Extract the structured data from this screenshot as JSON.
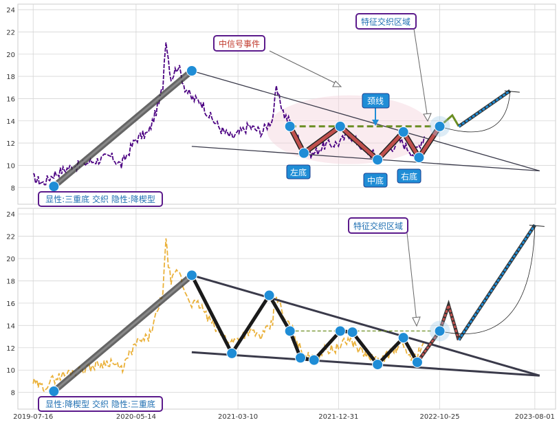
{
  "colors": {
    "panel_bg": "#eaeaf2",
    "grid": "#ffffff",
    "price_top": "#4b0082",
    "price_bottom": "#eab13a",
    "trend_thick": "#555555",
    "wave_red": "#c0504d",
    "wave_black": "#1a1a1a",
    "marker": "#1f8dd6",
    "neckline": "#6b8e23",
    "projection": "#1f8dd6",
    "annotation_border": "#5b1a8b",
    "annotation_text_red": "#c0392b",
    "annotation_text_blue": "#1f6fb2",
    "label_bg": "#1f8dd6"
  },
  "x_axis": {
    "tick_labels": [
      "2019-07-16",
      "2020-05-14",
      "2021-03-10",
      "2021-12-31",
      "2022-10-25",
      "2023-08-01"
    ]
  },
  "top_panel": {
    "y_ticks": [
      "8",
      "10",
      "12",
      "14",
      "16",
      "18",
      "20",
      "22",
      "24"
    ],
    "bottom_label": "显性:三重底 交织 隐性:降楔型",
    "annotations": {
      "event": "中信号事件",
      "zone": "特征交织区域",
      "neckline": "颈线",
      "left_bottom": "左底",
      "middle_bottom": "中底",
      "right_bottom": "右底"
    }
  },
  "bottom_panel": {
    "y_ticks": [
      "8",
      "10",
      "12",
      "14",
      "16",
      "18",
      "20",
      "22",
      "24"
    ],
    "bottom_label": "显性:降楔型 交织 隐性:三重底",
    "annotations": {
      "zone": "特征交织区域"
    }
  },
  "chart_data": [
    {
      "type": "line",
      "panel": "top",
      "x_type": "date",
      "ylim": [
        6.5,
        24.5
      ],
      "xlim": [
        "2019-06-01",
        "2023-10-01"
      ],
      "price_anchors": [
        [
          "2019-07-16",
          8.9
        ],
        [
          "2019-08-15",
          8.4
        ],
        [
          "2019-09-15",
          9.2
        ],
        [
          "2019-11-01",
          9.8
        ],
        [
          "2020-01-01",
          10.3
        ],
        [
          "2020-03-01",
          10.8
        ],
        [
          "2020-04-01",
          10.0
        ],
        [
          "2020-05-14",
          12.4
        ],
        [
          "2020-06-20",
          12.9
        ],
        [
          "2020-07-20",
          15.5
        ],
        [
          "2020-08-01",
          17.2
        ],
        [
          "2020-08-10",
          21.5
        ],
        [
          "2020-08-25",
          17.8
        ],
        [
          "2020-09-15",
          19.0
        ],
        [
          "2020-10-05",
          17.0
        ],
        [
          "2020-10-25",
          16.0
        ],
        [
          "2020-11-20",
          15.8
        ],
        [
          "2020-12-15",
          14.5
        ],
        [
          "2021-01-20",
          13.2
        ],
        [
          "2021-02-20",
          12.5
        ],
        [
          "2021-03-10",
          12.8
        ],
        [
          "2021-04-10",
          13.5
        ],
        [
          "2021-05-20",
          13.0
        ],
        [
          "2021-06-20",
          14.2
        ],
        [
          "2021-07-01",
          16.8
        ],
        [
          "2021-07-25",
          14.5
        ],
        [
          "2021-08-15",
          13.8
        ],
        [
          "2021-09-15",
          11.5
        ],
        [
          "2021-10-15",
          11.0
        ],
        [
          "2021-11-20",
          11.8
        ],
        [
          "2021-12-31",
          12.0
        ],
        [
          "2022-02-01",
          12.8
        ],
        [
          "2022-03-15",
          11.5
        ],
        [
          "2022-04-25",
          10.8
        ],
        [
          "2022-06-01",
          11.5
        ],
        [
          "2022-07-01",
          12.2
        ],
        [
          "2022-08-10",
          11.0
        ],
        [
          "2022-09-10",
          12.6
        ]
      ],
      "trend_line": [
        [
          "2019-09-15",
          8.1
        ],
        [
          "2020-10-25",
          18.5
        ]
      ],
      "wedge_upper": [
        [
          "2020-10-25",
          18.5
        ],
        [
          "2023-08-15",
          9.5
        ]
      ],
      "wedge_lower": [
        [
          "2020-10-25",
          11.7
        ],
        [
          "2023-08-15",
          9.5
        ]
      ],
      "wave": [
        [
          "2021-08-10",
          13.5
        ],
        [
          "2021-09-20",
          11.1
        ],
        [
          "2022-01-05",
          13.5
        ],
        [
          "2022-04-25",
          10.5
        ],
        [
          "2022-07-10",
          13.0
        ],
        [
          "2022-08-25",
          10.7
        ],
        [
          "2022-10-25",
          13.5
        ]
      ],
      "neckline": [
        [
          "2021-08-10",
          13.5
        ],
        [
          "2022-11-10",
          13.5
        ]
      ],
      "projection_zigzag": [
        [
          "2022-10-25",
          13.5
        ],
        [
          "2022-12-01",
          14.5
        ],
        [
          "2022-12-20",
          13.5
        ]
      ],
      "projection_target": [
        [
          "2022-12-20",
          13.5
        ],
        [
          "2023-05-20",
          16.7
        ]
      ],
      "markers": [
        [
          "2019-09-15",
          8.1
        ],
        [
          "2020-10-25",
          18.5
        ],
        [
          "2021-08-10",
          13.5
        ],
        [
          "2021-09-20",
          11.1
        ],
        [
          "2022-01-05",
          13.5
        ],
        [
          "2022-04-25",
          10.5
        ],
        [
          "2022-07-10",
          13.0
        ],
        [
          "2022-08-25",
          10.7
        ],
        [
          "2022-10-25",
          13.5
        ]
      ]
    },
    {
      "type": "line",
      "panel": "bottom",
      "x_type": "date",
      "ylim": [
        6.5,
        24.5
      ],
      "xlim": [
        "2019-06-01",
        "2023-10-01"
      ],
      "price_anchors": [
        [
          "2019-07-16",
          8.9
        ],
        [
          "2019-08-15",
          8.4
        ],
        [
          "2019-09-15",
          9.2
        ],
        [
          "2019-11-01",
          9.8
        ],
        [
          "2020-01-01",
          10.3
        ],
        [
          "2020-03-01",
          10.8
        ],
        [
          "2020-04-01",
          10.0
        ],
        [
          "2020-05-14",
          12.4
        ],
        [
          "2020-06-20",
          12.9
        ],
        [
          "2020-07-20",
          15.5
        ],
        [
          "2020-08-01",
          17.2
        ],
        [
          "2020-08-10",
          21.5
        ],
        [
          "2020-08-25",
          17.8
        ],
        [
          "2020-09-15",
          19.0
        ],
        [
          "2020-10-05",
          17.0
        ],
        [
          "2020-10-25",
          16.0
        ],
        [
          "2020-11-20",
          15.8
        ],
        [
          "2020-12-15",
          14.5
        ],
        [
          "2021-01-20",
          13.2
        ],
        [
          "2021-02-20",
          12.5
        ],
        [
          "2021-03-10",
          12.8
        ],
        [
          "2021-04-10",
          13.5
        ],
        [
          "2021-05-20",
          13.0
        ],
        [
          "2021-06-20",
          14.2
        ],
        [
          "2021-07-01",
          16.8
        ],
        [
          "2021-07-25",
          14.5
        ],
        [
          "2021-08-15",
          13.8
        ],
        [
          "2021-09-15",
          11.5
        ],
        [
          "2021-10-15",
          11.0
        ],
        [
          "2021-11-20",
          11.8
        ],
        [
          "2021-12-31",
          12.0
        ],
        [
          "2022-02-01",
          12.8
        ],
        [
          "2022-03-15",
          11.5
        ],
        [
          "2022-04-25",
          10.8
        ],
        [
          "2022-06-01",
          11.5
        ],
        [
          "2022-07-01",
          12.2
        ],
        [
          "2022-08-10",
          11.0
        ],
        [
          "2022-09-10",
          12.6
        ]
      ],
      "trend_line": [
        [
          "2019-09-15",
          8.1
        ],
        [
          "2020-10-25",
          18.5
        ]
      ],
      "wedge_upper": [
        [
          "2020-10-25",
          18.5
        ],
        [
          "2023-08-15",
          9.5
        ]
      ],
      "wedge_lower": [
        [
          "2020-10-25",
          11.6
        ],
        [
          "2023-08-15",
          9.5
        ]
      ],
      "wave": [
        [
          "2020-10-25",
          18.5
        ],
        [
          "2021-02-20",
          11.5
        ],
        [
          "2021-06-10",
          16.7
        ],
        [
          "2021-08-10",
          13.5
        ],
        [
          "2021-09-10",
          11.1
        ],
        [
          "2021-10-20",
          10.9
        ],
        [
          "2022-01-05",
          13.5
        ],
        [
          "2022-02-10",
          13.4
        ],
        [
          "2022-04-25",
          10.5
        ],
        [
          "2022-07-10",
          12.9
        ],
        [
          "2022-08-20",
          10.7
        ]
      ],
      "wave_red": [
        [
          "2022-08-20",
          10.7
        ],
        [
          "2022-10-25",
          13.5
        ],
        [
          "2022-11-20",
          15.8
        ],
        [
          "2022-12-20",
          12.7
        ]
      ],
      "neckline": [
        [
          "2021-08-10",
          13.5
        ],
        [
          "2022-10-01",
          13.5
        ]
      ],
      "projection_target": [
        [
          "2022-12-20",
          12.7
        ],
        [
          "2023-08-01",
          23.0
        ]
      ],
      "markers": [
        [
          "2019-09-15",
          8.1
        ],
        [
          "2020-10-25",
          18.5
        ],
        [
          "2021-02-20",
          11.5
        ],
        [
          "2021-06-10",
          16.7
        ],
        [
          "2021-08-10",
          13.5
        ],
        [
          "2021-09-10",
          11.1
        ],
        [
          "2021-10-20",
          10.9
        ],
        [
          "2022-01-05",
          13.5
        ],
        [
          "2022-02-10",
          13.4
        ],
        [
          "2022-04-25",
          10.5
        ],
        [
          "2022-07-10",
          12.9
        ],
        [
          "2022-08-20",
          10.7
        ],
        [
          "2022-10-25",
          13.5
        ]
      ]
    }
  ]
}
